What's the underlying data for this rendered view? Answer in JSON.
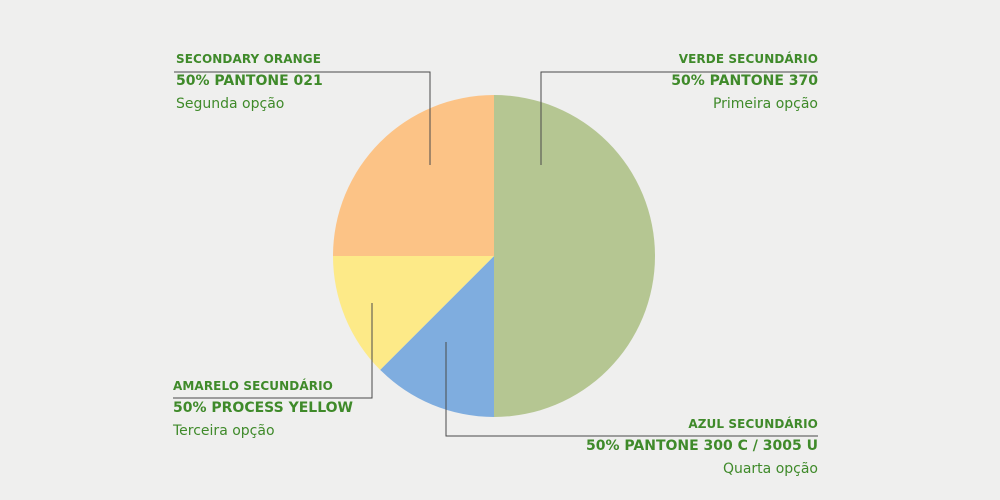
{
  "chart_data": {
    "type": "pie",
    "slices": [
      {
        "name": "VERDE SECUNDÁRIO",
        "pantone": "50% PANTONE 370",
        "option": "Primeira opção",
        "value": 50,
        "color": "#b5c692"
      },
      {
        "name": "AZUL SECUNDÁRIO",
        "pantone": "50% PANTONE 300 C / 3005 U",
        "option": "Quarta opção",
        "value": 12.5,
        "color": "#7faddf"
      },
      {
        "name": "AMARELO SECUNDÁRIO",
        "pantone": "50% PROCESS YELLOW",
        "option": "Terceira opção",
        "value": 12.5,
        "color": "#fdea88"
      },
      {
        "name": "SECONDARY ORANGE",
        "pantone": "50% PANTONE 021",
        "option": "Segunda opção",
        "value": 25,
        "color": "#fcc386"
      }
    ],
    "label_color": "#3f8a2a",
    "leader_color": "#4a4a4a"
  }
}
